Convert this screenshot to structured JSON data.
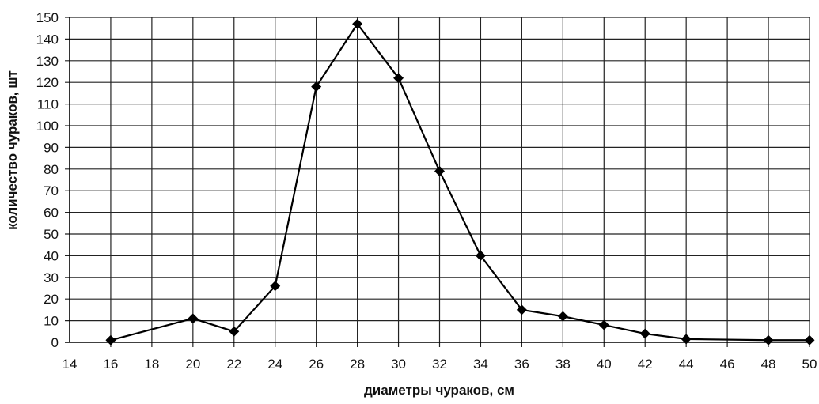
{
  "chart_data": {
    "type": "line",
    "xlabel": "диаметры чураков, см",
    "ylabel": "количество чураков, шт",
    "xlim": [
      14,
      50
    ],
    "ylim": [
      0,
      150
    ],
    "x_ticks": [
      14,
      16,
      18,
      20,
      22,
      24,
      26,
      28,
      30,
      32,
      34,
      36,
      38,
      40,
      42,
      44,
      46,
      48,
      50
    ],
    "y_ticks": [
      0,
      10,
      20,
      30,
      40,
      50,
      60,
      70,
      80,
      90,
      100,
      110,
      120,
      130,
      140,
      150
    ],
    "grid": true,
    "legend": "none",
    "series": [
      {
        "marker": "diamond",
        "color": "#000000",
        "x": [
          16,
          20,
          22,
          24,
          26,
          28,
          30,
          32,
          34,
          36,
          38,
          40,
          42,
          44,
          48,
          50
        ],
        "y": [
          1,
          11,
          5,
          26,
          118,
          147,
          122,
          79,
          40,
          15,
          12,
          8,
          4,
          1.5,
          1,
          1
        ]
      }
    ]
  }
}
